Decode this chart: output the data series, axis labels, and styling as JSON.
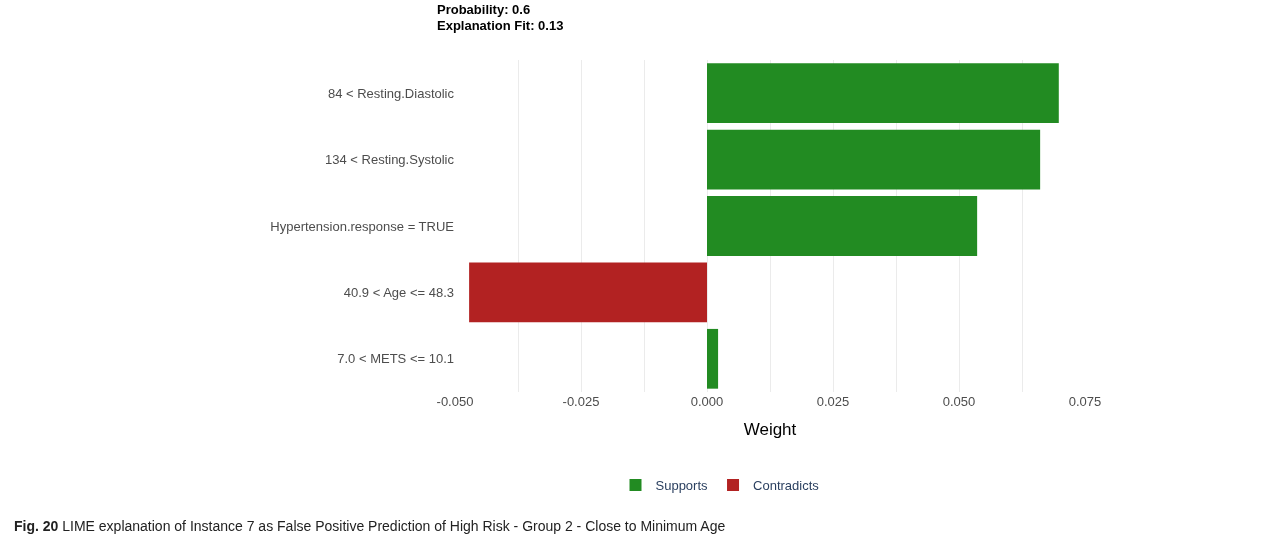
{
  "chart_data": {
    "type": "bar",
    "orientation": "horizontal",
    "title": "Probability: 0.6",
    "subtitle": "Explanation Fit: 0.13",
    "xlabel": "Weight",
    "categories": [
      "84 < Resting.Diastolic",
      "134 < Resting.Systolic",
      "Hypertension.response = TRUE",
      "40.9 < Age <= 48.3",
      "7.0 < METS <= 10.1"
    ],
    "series": [
      {
        "name": "Supports",
        "color": "#228b22",
        "values": [
          0.0698,
          0.0661,
          0.0536,
          null,
          0.0022
        ]
      },
      {
        "name": "Contradicts",
        "color": "#b22222",
        "values": [
          null,
          null,
          null,
          -0.0472,
          null
        ]
      }
    ],
    "xlim": [
      -0.05,
      0.075
    ],
    "xticks": [
      {
        "value": -0.05,
        "label": "-0.050"
      },
      {
        "value": -0.0375,
        "label": null
      },
      {
        "value": -0.025,
        "label": "-0.025"
      },
      {
        "value": -0.0125,
        "label": null
      },
      {
        "value": 0,
        "label": "0.000"
      },
      {
        "value": 0.0125,
        "label": null
      },
      {
        "value": 0.025,
        "label": "0.025"
      },
      {
        "value": 0.0375,
        "label": null
      },
      {
        "value": 0.05,
        "label": "0.050"
      },
      {
        "value": 0.0625,
        "label": null
      },
      {
        "value": 0.075,
        "label": "0.075"
      }
    ],
    "grid": "x",
    "legend": "bottom",
    "annotations": [
      "Fig. 20 LIME explanation of Instance 7 as False Positive Prediction of High Risk - Group 2 - Close to Minimum Age"
    ]
  }
}
